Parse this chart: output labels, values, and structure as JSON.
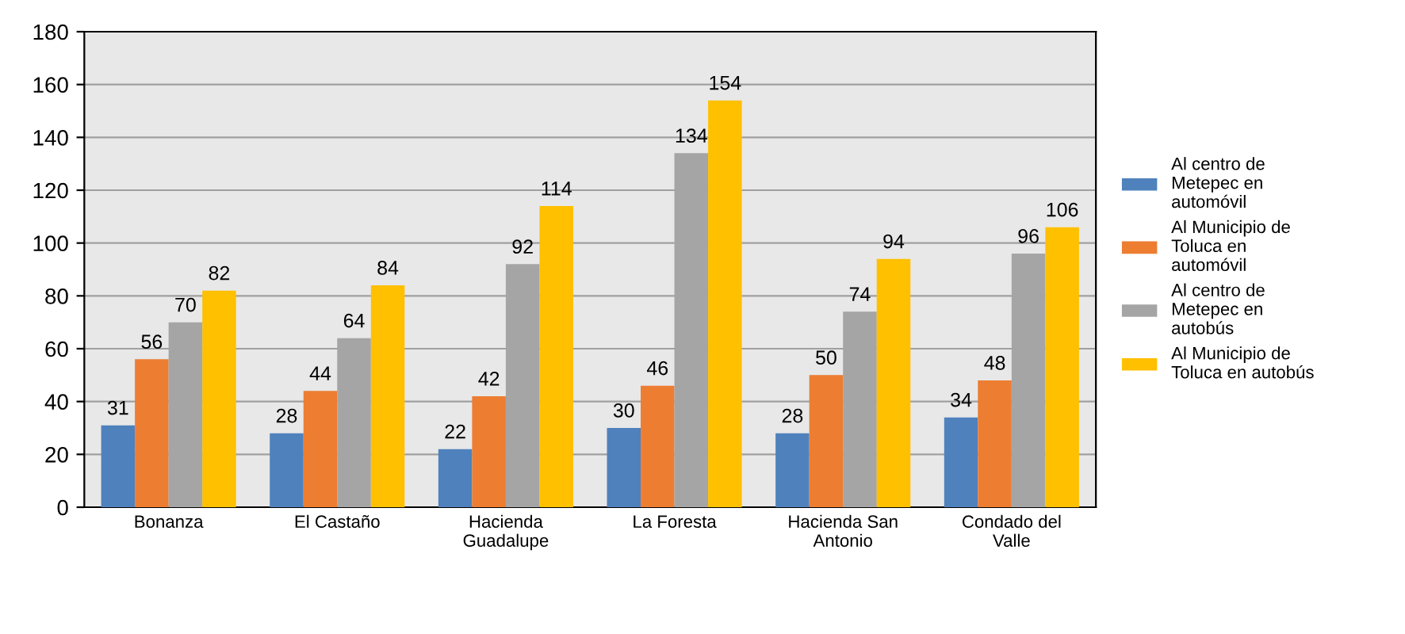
{
  "chart_data": {
    "type": "bar",
    "categories": [
      "Bonanza",
      "El Castaño",
      "Hacienda\nGuadalupe",
      "La Foresta",
      "Hacienda San\nAntonio",
      "Condado del\nValle"
    ],
    "series": [
      {
        "name": "Al centro de\nMetepec en\nautomóvil",
        "color": "#4f81bd",
        "values": [
          31,
          28,
          22,
          30,
          28,
          34
        ]
      },
      {
        "name": "Al Municipio de\nToluca en\nautomóvil",
        "color": "#ed7d31",
        "values": [
          56,
          44,
          42,
          46,
          50,
          48
        ]
      },
      {
        "name": "Al centro de\nMetepec en\nautobús",
        "color": "#a5a5a5",
        "values": [
          70,
          64,
          92,
          134,
          74,
          96
        ]
      },
      {
        "name": "Al Municipio de\nToluca en autobús",
        "color": "#ffc000",
        "values": [
          82,
          84,
          114,
          154,
          94,
          106
        ]
      }
    ],
    "ylim": [
      0,
      180
    ],
    "yticks": [
      0,
      20,
      40,
      60,
      80,
      100,
      120,
      140,
      160,
      180
    ],
    "grid": "y",
    "legend": "right",
    "data_labels": true
  }
}
